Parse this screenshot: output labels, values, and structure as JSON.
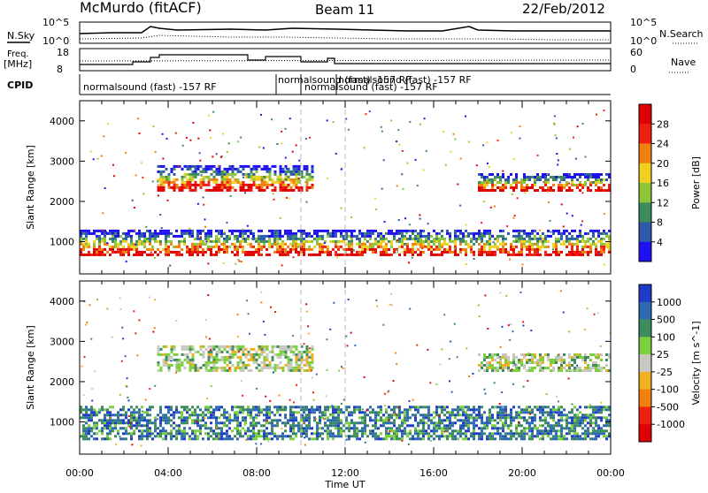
{
  "header": {
    "station": "McMurdo (fitACF)",
    "beam": "Beam 11",
    "date": "22/Feb/2012"
  },
  "top_panels": {
    "left_labels": {
      "nsky": "N.Sky",
      "freq": "Freq.",
      "freq_unit": "[MHz]",
      "cpid": "CPID"
    },
    "right_labels": {
      "nsearch": "N.Search",
      "nave": "Nave"
    },
    "noise_axis_ticks_left": [
      "10^5",
      "10^0"
    ],
    "noise_axis_ticks_right": [
      "10^5",
      "10^0"
    ],
    "freq_axis_ticks": [
      "18",
      "8"
    ],
    "nave_axis_ticks": [
      "60",
      "0"
    ],
    "cpid_texts": [
      "normalsound (fast) -157 RF",
      "normalsound (fast) -157 RF",
      "normalsound (fast) -157 RF",
      "normalsound (fast) -157 RF"
    ]
  },
  "chart_data": [
    {
      "type": "heatmap",
      "title": "",
      "xlabel": "",
      "ylabel": "Slant Range [km]",
      "ylim": [
        200,
        4500
      ],
      "yticks": [
        "1000",
        "2000",
        "3000",
        "4000"
      ],
      "colorbar": {
        "label": "Power [dB]",
        "ticks": [
          "4",
          "8",
          "12",
          "16",
          "20",
          "24",
          "28"
        ],
        "colors": [
          "#1e10f0",
          "#2d5aaa",
          "#3d8c5e",
          "#8ec63a",
          "#f0d020",
          "#f08010",
          "#f02010",
          "#e00000"
        ]
      },
      "bands": [
        {
          "x0": 0.0,
          "x1": 24.0,
          "y0": 700,
          "y1": 1300,
          "value_db": 20
        },
        {
          "x0": 3.5,
          "x1": 10.5,
          "y0": 2300,
          "y1": 2900,
          "value_db": 14
        },
        {
          "x0": 18.0,
          "x1": 24.0,
          "y0": 2300,
          "y1": 2700,
          "value_db": 16
        }
      ]
    },
    {
      "type": "heatmap",
      "title": "",
      "xlabel": "Time UT",
      "ylabel": "Slant Range [km]",
      "ylim": [
        200,
        4500
      ],
      "yticks": [
        "1000",
        "2000",
        "3000",
        "4000"
      ],
      "xticks": [
        "00:00",
        "04:00",
        "08:00",
        "12:00",
        "16:00",
        "20:00",
        "00:00"
      ],
      "colorbar": {
        "label": "Velocity [m s^-1]",
        "ticks": [
          "1000",
          "500",
          "100",
          "25",
          "-25",
          "-100",
          "-500",
          "-1000"
        ],
        "colors": [
          "#1e3cc8",
          "#2d6ab0",
          "#3d8c5e",
          "#7cd040",
          "#c8c8c0",
          "#f0b020",
          "#f08010",
          "#f02010",
          "#e00000"
        ]
      },
      "bands": [
        {
          "x0": 0.0,
          "x1": 24.0,
          "y0": 600,
          "y1": 1400,
          "value_ms": 100
        },
        {
          "x0": 3.5,
          "x1": 10.5,
          "y0": 2300,
          "y1": 2900,
          "value_ms": -25
        },
        {
          "x0": 18.0,
          "x1": 24.0,
          "y0": 2300,
          "y1": 2700,
          "value_ms": -25
        }
      ]
    }
  ]
}
